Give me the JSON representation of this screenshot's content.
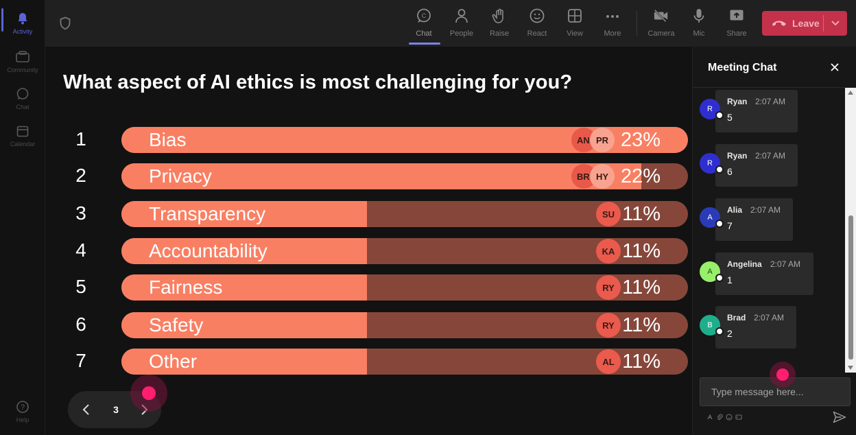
{
  "rail": {
    "items": [
      {
        "label": "Activity",
        "icon": "bell-icon",
        "active": true
      },
      {
        "label": "Community",
        "icon": "community-icon",
        "active": false
      },
      {
        "label": "Chat",
        "icon": "chat-icon",
        "active": false
      },
      {
        "label": "Calendar",
        "icon": "calendar-icon",
        "active": false
      }
    ],
    "help_label": "Help"
  },
  "toolbar": {
    "items": [
      {
        "label": "Chat",
        "icon": "chat-icon"
      },
      {
        "label": "People",
        "icon": "people-icon"
      },
      {
        "label": "Raise",
        "icon": "raise-hand-icon"
      },
      {
        "label": "React",
        "icon": "smiley-icon"
      },
      {
        "label": "View",
        "icon": "grid-icon"
      },
      {
        "label": "More",
        "icon": "more-icon"
      },
      {
        "label": "Camera",
        "icon": "camera-off-icon"
      },
      {
        "label": "Mic",
        "icon": "mic-icon"
      },
      {
        "label": "Share",
        "icon": "share-icon"
      }
    ],
    "leave_label": "Leave",
    "colors": {
      "leave": "#c4314b",
      "accent": "#7b83eb"
    }
  },
  "poll": {
    "question": "What aspect of AI ethics is most challenging for you?",
    "options": [
      {
        "num": "1",
        "label": "Bias",
        "percent": 23,
        "percent_label": "23%",
        "voters": [
          "AN",
          "PR"
        ]
      },
      {
        "num": "2",
        "label": "Privacy",
        "percent": 22,
        "percent_label": "22%",
        "voters": [
          "BR",
          "HY"
        ]
      },
      {
        "num": "3",
        "label": "Transparency",
        "percent": 11,
        "percent_label": "11%",
        "voters": [
          "SU"
        ]
      },
      {
        "num": "4",
        "label": "Accountability",
        "percent": 11,
        "percent_label": "11%",
        "voters": [
          "KA"
        ]
      },
      {
        "num": "5",
        "label": "Fairness",
        "percent": 11,
        "percent_label": "11%",
        "voters": [
          "RY"
        ]
      },
      {
        "num": "6",
        "label": "Safety",
        "percent": 11,
        "percent_label": "11%",
        "voters": [
          "RY"
        ]
      },
      {
        "num": "7",
        "label": "Other",
        "percent": 11,
        "percent_label": "11%",
        "voters": [
          "AL"
        ]
      }
    ],
    "colors": {
      "fill": "#f97f63",
      "track": "#86473a"
    }
  },
  "pager": {
    "page": "3"
  },
  "chat": {
    "title": "Meeting Chat",
    "messages": [
      {
        "initial": "R",
        "name": "Ryan",
        "time": "2:07 AM",
        "text": "5",
        "color": "#2f2fd0",
        "text_color": "#ffffff"
      },
      {
        "initial": "R",
        "name": "Ryan",
        "time": "2:07 AM",
        "text": "6",
        "color": "#2f2fd0",
        "text_color": "#ffffff"
      },
      {
        "initial": "A",
        "name": "Alia",
        "time": "2:07 AM",
        "text": "7",
        "color": "#2b3bb8",
        "text_color": "#ffffff"
      },
      {
        "initial": "A",
        "name": "Angelina",
        "time": "2:07 AM",
        "text": "1",
        "color": "#98f06a",
        "text_color": "#1e3d10"
      },
      {
        "initial": "B",
        "name": "Brad",
        "time": "2:07 AM",
        "text": "2",
        "color": "#1fae8c",
        "text_color": "#ffffff"
      }
    ],
    "input_placeholder": "Type message here..."
  }
}
